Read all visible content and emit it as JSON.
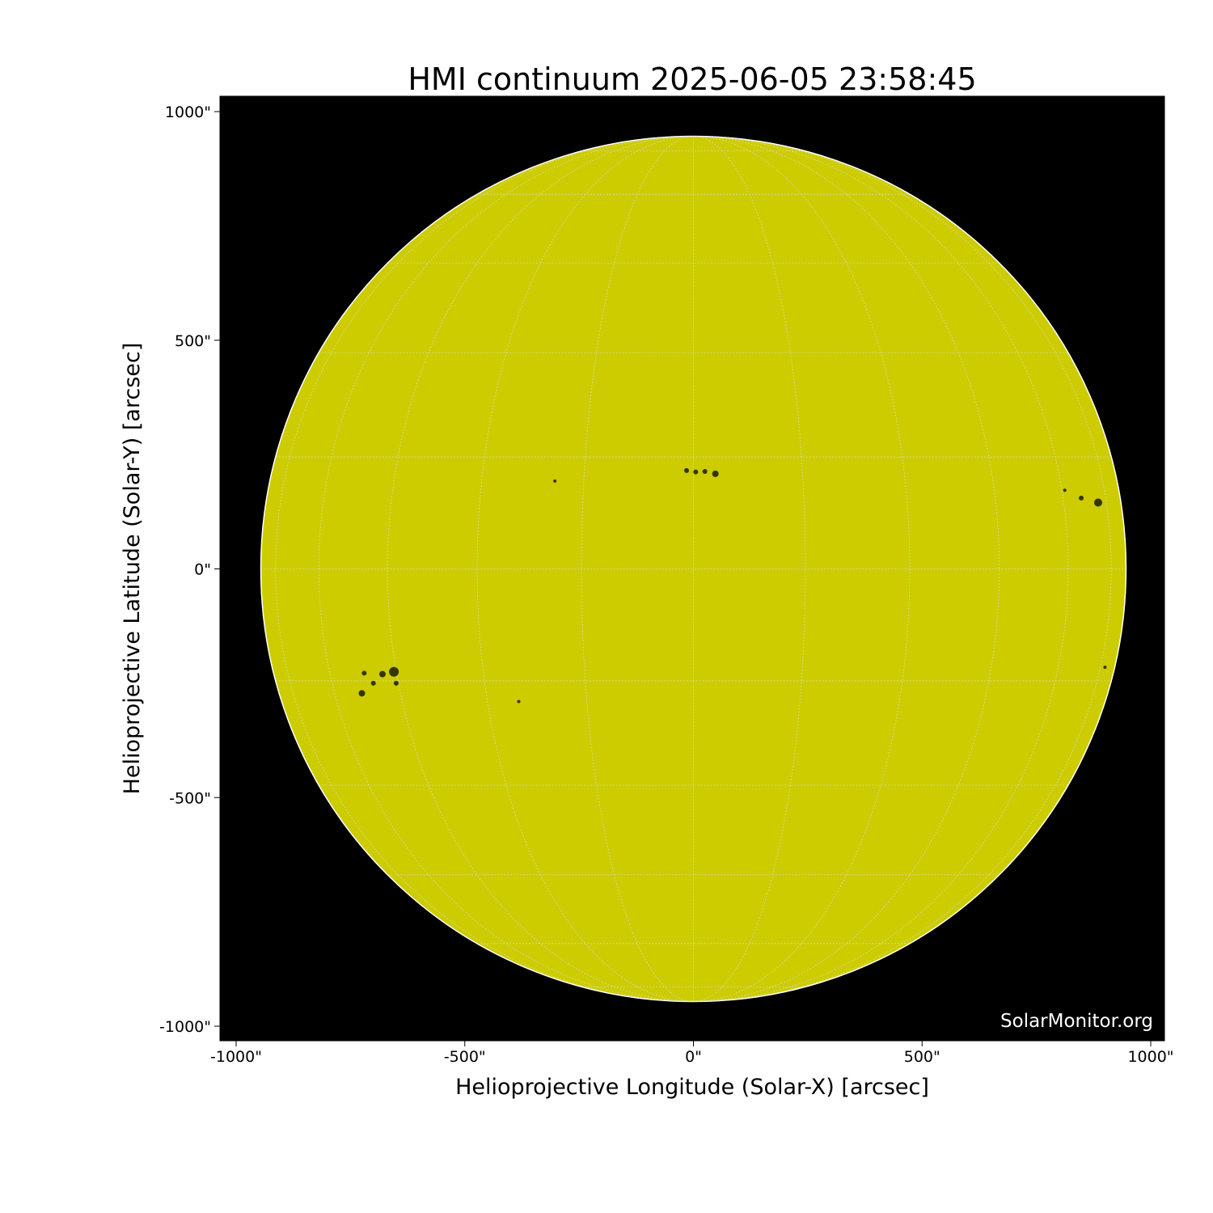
{
  "chart_data": {
    "type": "image",
    "title": "HMI continuum 2025-06-05 23:58:45",
    "xlabel": "Helioprojective Longitude (Solar-X) [arcsec]",
    "ylabel": "Helioprojective Latitude (Solar-Y) [arcsec]",
    "xlim": [
      -1035,
      1030
    ],
    "ylim": [
      -1030,
      1035
    ],
    "xticks": [
      -1000,
      -500,
      0,
      500,
      1000
    ],
    "xtick_labels": [
      "-1000\"",
      "-500\"",
      "0\"",
      "500\"",
      "1000\""
    ],
    "yticks": [
      1000,
      500,
      0,
      -500,
      -1000
    ],
    "ytick_labels": [
      "1000\"",
      "500\"",
      "0\"",
      "-500\"",
      "-1000\""
    ],
    "solar_radius_arcsec": 946,
    "grid": true,
    "grid_spacing_deg": 15,
    "colors": {
      "disk": "#cccc00",
      "background": "#000000",
      "grid": "#dddddd",
      "limb": "#ffffff"
    },
    "sunspots": [
      {
        "x": -15,
        "y": 215,
        "r": 3
      },
      {
        "x": 5,
        "y": 212,
        "r": 3
      },
      {
        "x": 25,
        "y": 213,
        "r": 3
      },
      {
        "x": 48,
        "y": 208,
        "r": 4
      },
      {
        "x": -655,
        "y": -225,
        "r": 6
      },
      {
        "x": -680,
        "y": -230,
        "r": 4
      },
      {
        "x": -720,
        "y": -228,
        "r": 3
      },
      {
        "x": -725,
        "y": -272,
        "r": 4
      },
      {
        "x": -650,
        "y": -250,
        "r": 3
      },
      {
        "x": -700,
        "y": -250,
        "r": 3
      },
      {
        "x": 885,
        "y": 145,
        "r": 5
      },
      {
        "x": 848,
        "y": 155,
        "r": 3
      },
      {
        "x": 812,
        "y": 172,
        "r": 2
      },
      {
        "x": -303,
        "y": 192,
        "r": 2
      },
      {
        "x": -382,
        "y": -290,
        "r": 2
      },
      {
        "x": 900,
        "y": -215,
        "r": 2
      }
    ]
  },
  "watermark": "SolarMonitor.org"
}
